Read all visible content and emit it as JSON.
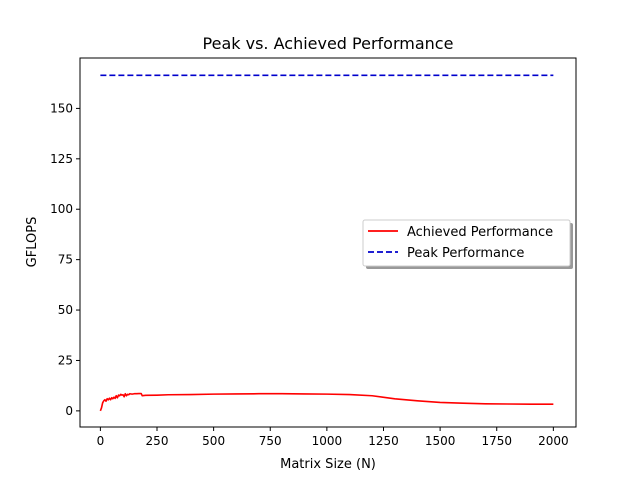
{
  "chart_data": {
    "type": "line",
    "title": "Peak vs. Achieved Performance",
    "xlabel": "Matrix Size (N)",
    "ylabel": "GFLOPS",
    "xlim": [
      -90,
      2100
    ],
    "ylim": [
      -8,
      175
    ],
    "xticks": [
      0,
      250,
      500,
      750,
      1000,
      1250,
      1500,
      1750,
      2000
    ],
    "yticks": [
      0,
      25,
      50,
      75,
      100,
      125,
      150
    ],
    "legend_position": "center-right",
    "grid": false,
    "series": [
      {
        "name": "Achieved Performance",
        "color": "#ff0000",
        "style": "solid",
        "x": [
          0,
          5,
          10,
          15,
          20,
          25,
          30,
          35,
          40,
          45,
          50,
          55,
          60,
          65,
          70,
          75,
          80,
          85,
          90,
          95,
          100,
          105,
          110,
          115,
          120,
          125,
          130,
          140,
          150,
          160,
          170,
          180,
          185,
          190,
          200,
          250,
          300,
          400,
          500,
          600,
          700,
          800,
          900,
          1000,
          1100,
          1200,
          1300,
          1400,
          1500,
          1600,
          1700,
          1800,
          1900,
          2000
        ],
        "y": [
          0,
          1.5,
          4.0,
          5.0,
          5.5,
          4.8,
          6.0,
          5.5,
          6.3,
          5.5,
          6.5,
          6.0,
          6.8,
          6.2,
          7.5,
          6.5,
          7.8,
          7.5,
          8.2,
          7.8,
          8.0,
          7.0,
          8.5,
          7.5,
          8.2,
          8.0,
          8.5,
          8.3,
          8.5,
          8.5,
          8.6,
          8.6,
          7.5,
          7.6,
          7.7,
          7.8,
          8.0,
          8.1,
          8.3,
          8.4,
          8.5,
          8.5,
          8.4,
          8.3,
          8.1,
          7.5,
          6.0,
          5.0,
          4.2,
          3.8,
          3.5,
          3.4,
          3.3,
          3.3
        ]
      },
      {
        "name": "Peak Performance",
        "color": "#0000cc",
        "style": "dashed",
        "x": [
          0,
          2000
        ],
        "y": [
          166.4,
          166.4
        ]
      }
    ]
  }
}
